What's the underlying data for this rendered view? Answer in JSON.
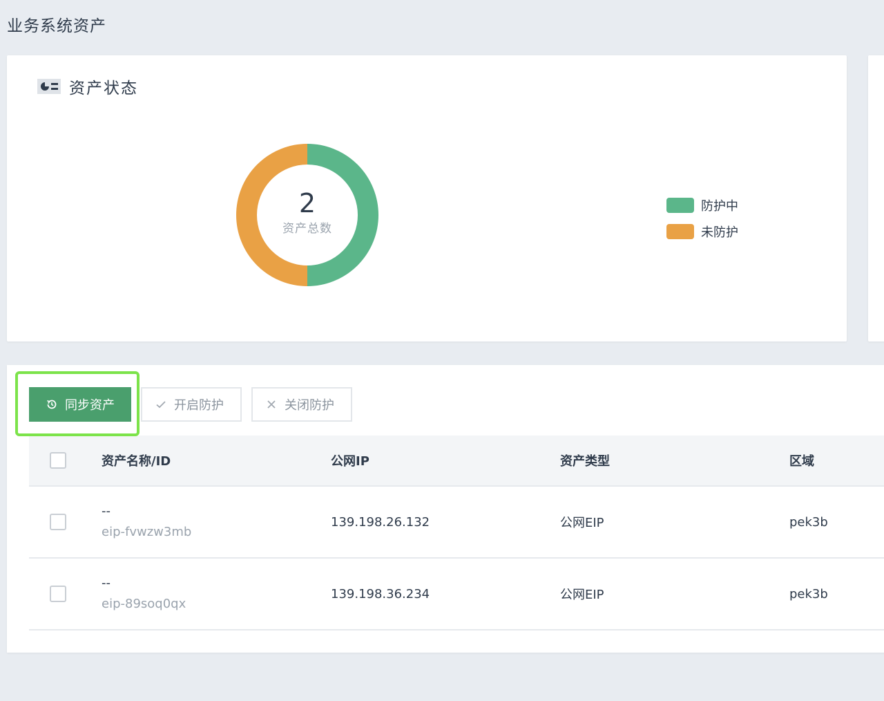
{
  "page": {
    "title": "业务系统资产"
  },
  "status_card": {
    "title": "资产状态",
    "total": "2",
    "total_label": "资产总数",
    "legend": [
      {
        "label": "防护中",
        "color": "#5bb68a"
      },
      {
        "label": "未防护",
        "color": "#e9a145"
      }
    ]
  },
  "chart_data": {
    "type": "pie",
    "categories": [
      "防护中",
      "未防护"
    ],
    "values": [
      1,
      1
    ],
    "colors": [
      "#5bb68a",
      "#e9a145"
    ],
    "title": "",
    "center_value": 2,
    "center_label": "资产总数",
    "legend_position": "right"
  },
  "toolbar": {
    "sync_label": "同步资产",
    "enable_label": "开启防护",
    "disable_label": "关闭防护"
  },
  "table": {
    "columns": [
      "资产名称/ID",
      "公网IP",
      "资产类型",
      "区域"
    ],
    "rows": [
      {
        "name": "--",
        "id": "eip-fvwzw3mb",
        "ip": "139.198.26.132",
        "type": "公网EIP",
        "region": "pek3b"
      },
      {
        "name": "--",
        "id": "eip-89soq0qx",
        "ip": "139.198.36.234",
        "type": "公网EIP",
        "region": "pek3b"
      }
    ]
  }
}
